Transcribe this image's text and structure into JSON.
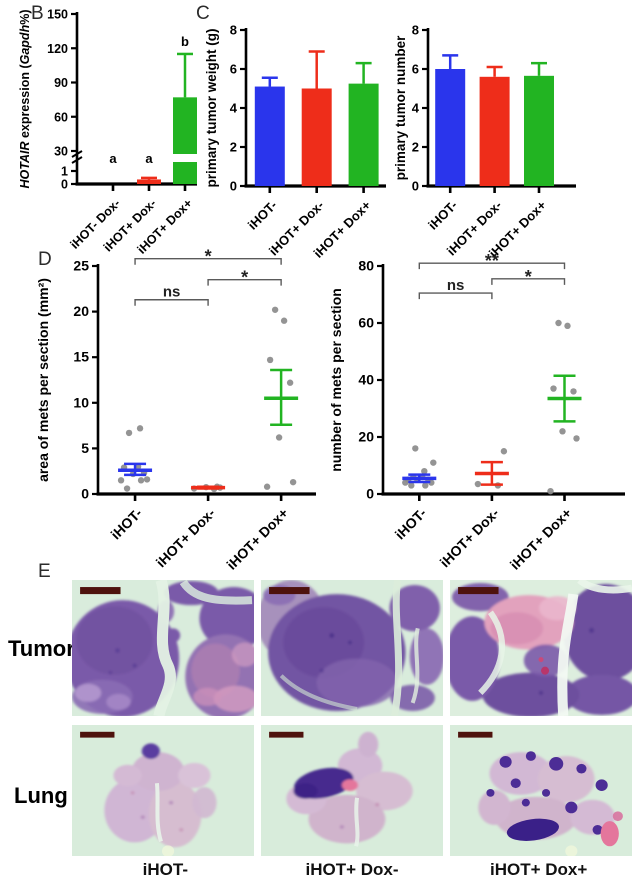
{
  "panels": {
    "b_label": "B",
    "c_label": "C",
    "d_label": "D",
    "e_label": "E"
  },
  "panel_e": {
    "row_labels": [
      "Tumor",
      "Lung"
    ],
    "col_labels": [
      "iHOT-",
      "iHOT+ Dox-",
      "iHOT+ Dox+"
    ]
  },
  "colors": {
    "blue": "#2a35ec",
    "red": "#ee2d1a",
    "green": "#22b422",
    "dot_gray": "#8b8b8b",
    "bracket": "#5a5a5a"
  },
  "chart_data": [
    {
      "id": "hotair-expression",
      "type": "bar",
      "ylabel_parts": [
        {
          "text": "HOTAIR",
          "italic": true
        },
        {
          "text": " expression (",
          "italic": false
        },
        {
          "text": "Gapdh",
          "italic": true
        },
        {
          "text": "%)",
          "italic": false
        }
      ],
      "categories": [
        "iHOT- Dox-",
        "iHOT+ Dox-",
        "iHOT+ Dox+"
      ],
      "values": [
        0.02,
        0.35,
        77
      ],
      "errors_up": [
        0,
        0.12,
        38
      ],
      "bar_colors": [
        "#2a35ec",
        "#ee2d1a",
        "#22b422"
      ],
      "bar_labels": [
        "a",
        "a",
        "b"
      ],
      "broken_axis": {
        "lower_ticks": [
          0,
          1
        ],
        "upper_ticks": [
          30,
          60,
          90,
          120,
          150
        ],
        "upper_max": 150
      }
    },
    {
      "id": "primary-tumor-weight",
      "type": "bar",
      "ylabel": "primary tumor weight (g)",
      "categories": [
        "iHOT-",
        "iHOT+ Dox-",
        "iHOT+ Dox+"
      ],
      "values": [
        5.1,
        5.0,
        5.25
      ],
      "errors_up": [
        0.45,
        1.9,
        1.05
      ],
      "bar_colors": [
        "#2a35ec",
        "#ee2d1a",
        "#22b422"
      ],
      "ylim": [
        0,
        8
      ],
      "yticks": [
        0,
        2,
        4,
        6,
        8
      ]
    },
    {
      "id": "primary-tumor-number",
      "type": "bar",
      "ylabel": "primary tumor number",
      "categories": [
        "iHOT-",
        "iHOT+ Dox-",
        "iHOT+ Dox+"
      ],
      "values": [
        6.0,
        5.6,
        5.65
      ],
      "errors_up": [
        0.7,
        0.5,
        0.65
      ],
      "bar_colors": [
        "#2a35ec",
        "#ee2d1a",
        "#22b422"
      ],
      "ylim": [
        0,
        8
      ],
      "yticks": [
        0,
        2,
        4,
        6,
        8
      ]
    },
    {
      "id": "area-of-mets-per-section",
      "type": "scatter",
      "ylabel": "area of mets per section (mm²)",
      "ylim": [
        0,
        25
      ],
      "yticks": [
        0,
        5,
        10,
        15,
        20,
        25
      ],
      "groups": [
        {
          "label": "iHOT-",
          "color": "#2a35ec",
          "points": [
            0.6,
            1.5,
            1.5,
            1.6,
            2.2,
            2.3,
            2.9,
            3.0,
            6.7,
            7.2
          ],
          "mean": 2.6,
          "err_low": 2.1,
          "err_high": 3.3
        },
        {
          "label": "iHOT+ Dox-",
          "color": "#ee2d1a",
          "points": [
            0.55,
            0.6,
            0.7,
            0.75,
            0.8
          ],
          "mean": 0.7,
          "err_low": 0.6,
          "err_high": 0.8
        },
        {
          "label": "iHOT+ Dox+",
          "color": "#22b422",
          "points": [
            0.8,
            1.3,
            6.2,
            12.2,
            14.7,
            19.0,
            20.2
          ],
          "mean": 10.5,
          "err_low": 7.6,
          "err_high": 13.6
        }
      ],
      "brackets": [
        {
          "a": 0,
          "b": 2,
          "label": "*",
          "y": 25.8
        },
        {
          "a": 1,
          "b": 2,
          "label": "*",
          "y": 23.5
        },
        {
          "a": 0,
          "b": 1,
          "label": "ns",
          "y": 21.3
        }
      ]
    },
    {
      "id": "number-of-mets-per-section",
      "type": "scatter",
      "ylabel": "number of mets per section",
      "ylim": [
        0,
        80
      ],
      "yticks": [
        0,
        20,
        40,
        60,
        80
      ],
      "groups": [
        {
          "label": "iHOT-",
          "color": "#2a35ec",
          "points": [
            3,
            3,
            4,
            4,
            5,
            5,
            5,
            6,
            6,
            8,
            11,
            16
          ],
          "mean": 5.5,
          "err_low": 4.2,
          "err_high": 6.8
        },
        {
          "label": "iHOT+ Dox-",
          "color": "#ee2d1a",
          "points": [
            3,
            3.5,
            15
          ],
          "mean": 7.2,
          "err_low": 3.3,
          "err_high": 11.2
        },
        {
          "label": "iHOT+ Dox+",
          "color": "#22b422",
          "points": [
            1,
            19.5,
            22,
            36,
            37,
            59,
            60
          ],
          "mean": 33.5,
          "err_low": 25.5,
          "err_high": 41.5
        }
      ],
      "brackets": [
        {
          "a": 0,
          "b": 2,
          "label": "**",
          "y": 81
        },
        {
          "a": 1,
          "b": 2,
          "label": "*",
          "y": 75.5
        },
        {
          "a": 0,
          "b": 1,
          "label": "ns",
          "y": 70.5
        }
      ]
    }
  ]
}
